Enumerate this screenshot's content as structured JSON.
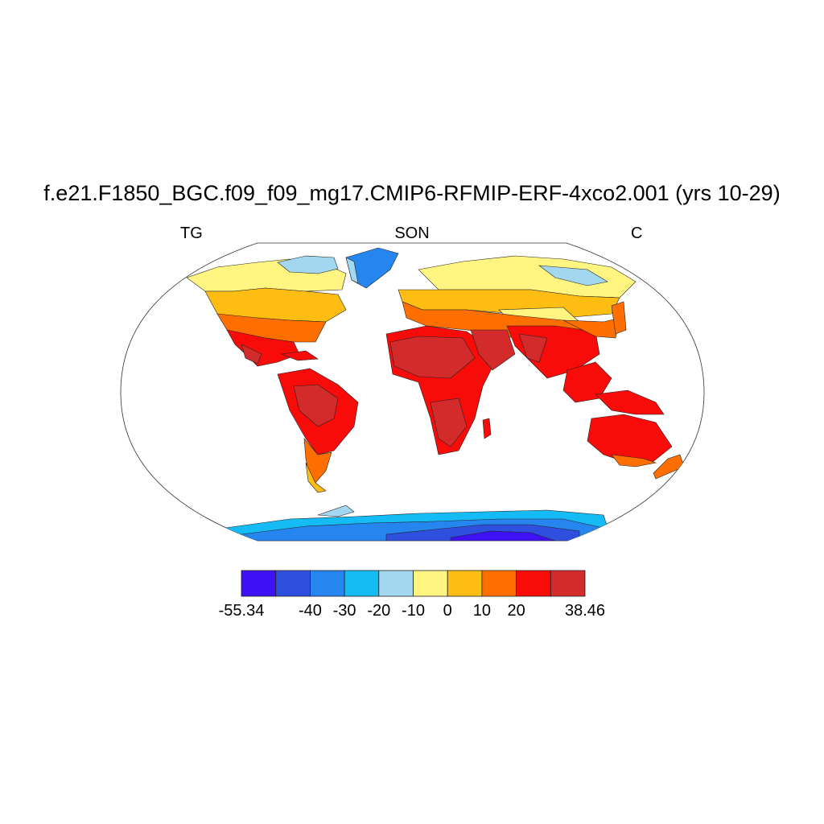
{
  "title": "f.e21.F1850_BGC.f09_f09_mg17.CMIP6-RFMIP-ERF-4xco2.001 (yrs 10-29)",
  "left_label": "TG",
  "center_label": "SON",
  "right_label": "C",
  "colorbar": {
    "colors": [
      "#3f12f5",
      "#2f4fdf",
      "#2586f0",
      "#14bbf5",
      "#a3d7f0",
      "#fff580",
      "#fdbd12",
      "#ff6f00",
      "#f80b09",
      "#d32b2b"
    ],
    "tick_labels": [
      "-55.34",
      "-40",
      "-30",
      "-20",
      "-10",
      "0",
      "10",
      "20",
      "38.46"
    ],
    "tick_values": [
      -55.34,
      -40,
      -30,
      -20,
      -10,
      0,
      10,
      20,
      38.46
    ]
  }
}
